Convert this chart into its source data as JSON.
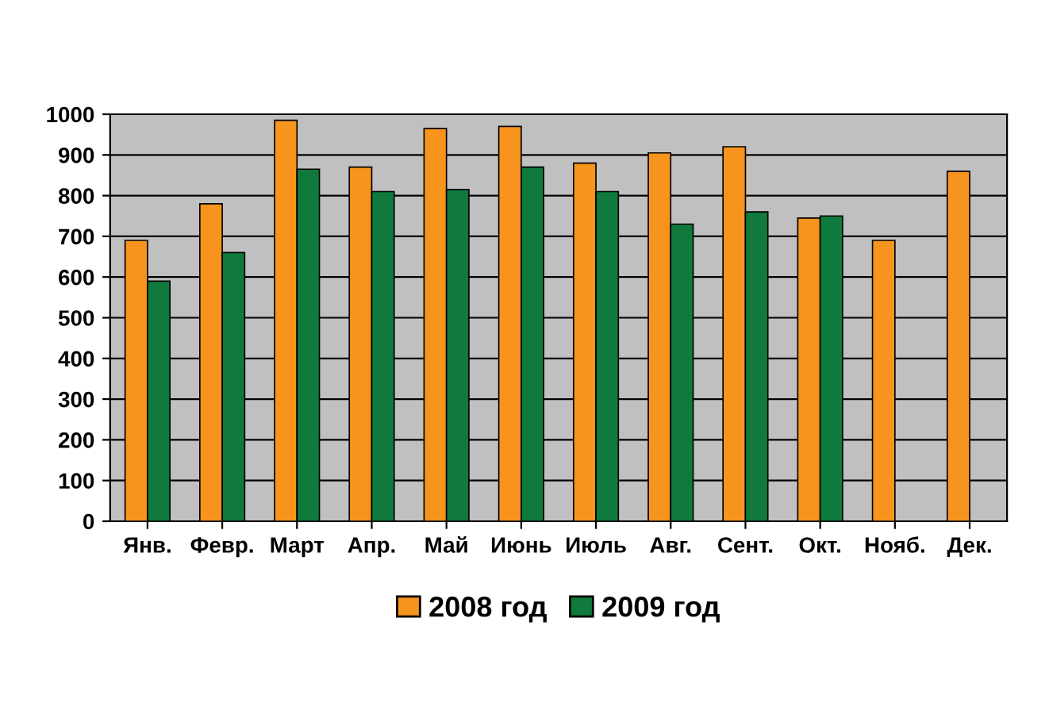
{
  "chart_data": {
    "type": "bar",
    "categories": [
      "Янв.",
      "Февр.",
      "Март",
      "Апр.",
      "Май",
      "Июнь",
      "Июль",
      "Авг.",
      "Сент.",
      "Окт.",
      "Нояб.",
      "Дек."
    ],
    "series": [
      {
        "name": "2008 год",
        "color": "#f7941d",
        "values": [
          690,
          780,
          985,
          870,
          965,
          970,
          880,
          905,
          920,
          745,
          690,
          860
        ]
      },
      {
        "name": "2009 год",
        "color": "#0f7a3c",
        "values": [
          590,
          660,
          865,
          810,
          815,
          870,
          810,
          730,
          760,
          750,
          null,
          null
        ]
      }
    ],
    "ylim": [
      0,
      1000
    ],
    "yticks": [
      0,
      100,
      200,
      300,
      400,
      500,
      600,
      700,
      800,
      900,
      1000
    ],
    "grid": "y",
    "legend": "bottom"
  }
}
